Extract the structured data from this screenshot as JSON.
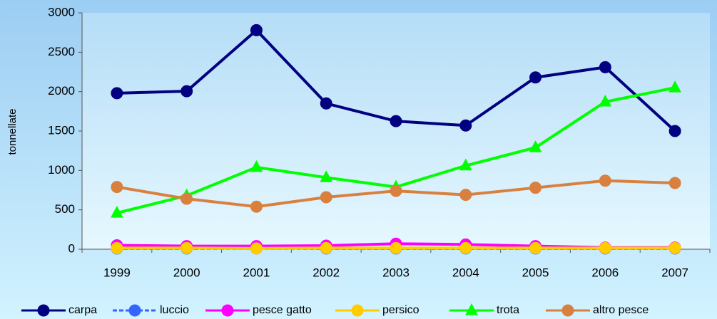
{
  "chart_data": {
    "type": "line",
    "y_label": "tonnellate",
    "categories": [
      "1999",
      "2000",
      "2001",
      "2002",
      "2003",
      "2004",
      "2005",
      "2006",
      "2007"
    ],
    "series": [
      {
        "name": "carpa",
        "color": "#000080",
        "marker": "circle",
        "values": [
          1980,
          2005,
          2780,
          1850,
          1625,
          1570,
          2180,
          2310,
          1500
        ]
      },
      {
        "name": "luccio",
        "color": "#3366ff",
        "marker": "circle",
        "dashed": true,
        "values": [
          10,
          10,
          10,
          10,
          10,
          10,
          10,
          10,
          10
        ]
      },
      {
        "name": "pesce gatto",
        "color": "#ff00ff",
        "marker": "circle",
        "values": [
          50,
          40,
          40,
          45,
          70,
          60,
          40,
          20,
          20
        ]
      },
      {
        "name": "persico",
        "color": "#ffcc00",
        "marker": "circle",
        "values": [
          15,
          15,
          10,
          15,
          15,
          15,
          15,
          15,
          15
        ]
      },
      {
        "name": "trota",
        "color": "#00ff00",
        "marker": "triangle",
        "values": [
          460,
          680,
          1040,
          910,
          790,
          1060,
          1290,
          1870,
          2050
        ]
      },
      {
        "name": "altro pesce",
        "color": "#d9803f",
        "marker": "circle",
        "values": [
          790,
          640,
          540,
          660,
          740,
          690,
          780,
          870,
          840
        ]
      }
    ],
    "ylim": [
      0,
      3000
    ],
    "yticks": [
      0,
      500,
      1000,
      1500,
      2000,
      2500,
      3000
    ],
    "grid": false,
    "legend": "bottom"
  }
}
